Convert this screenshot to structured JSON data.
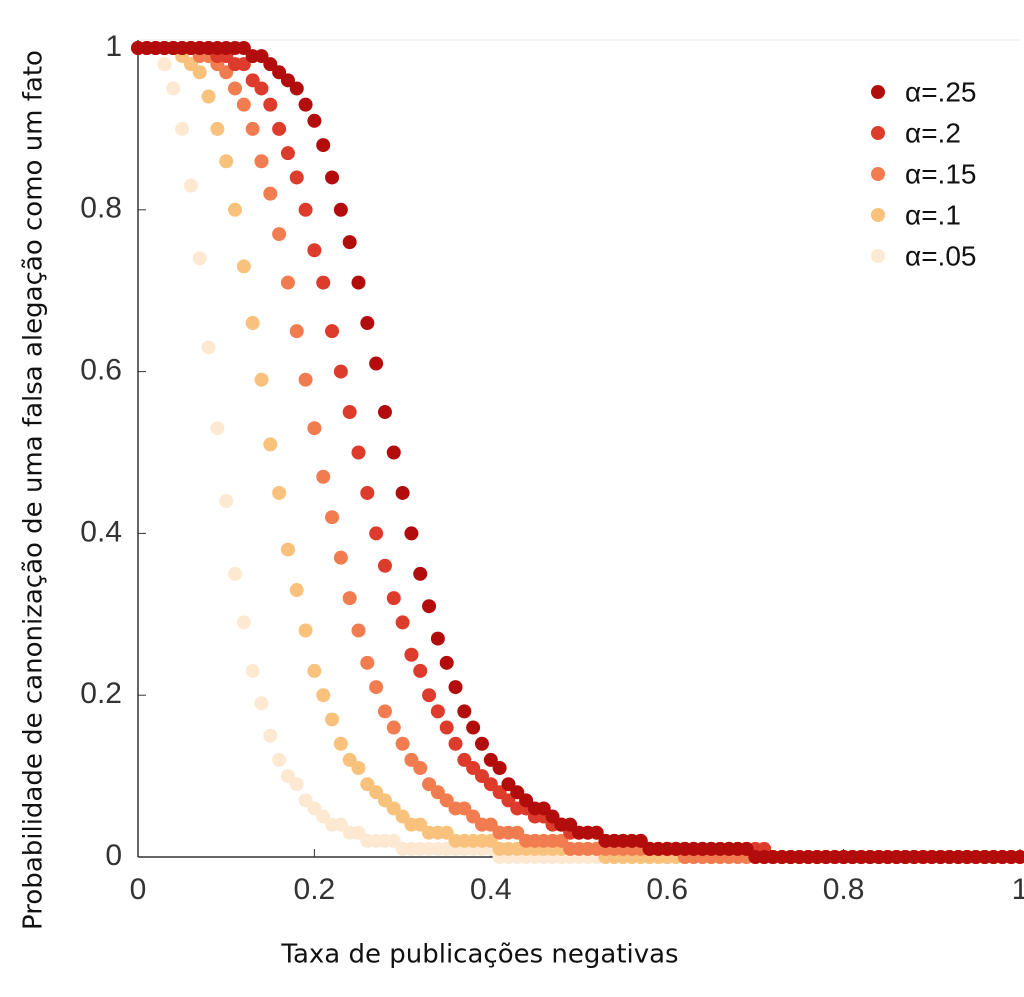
{
  "chart_data": {
    "type": "scatter",
    "xlabel": "Taxa de publicações negativas",
    "ylabel": "Probabilidade de canonização de uma falsa alegação como um fato",
    "xlim": [
      0,
      1
    ],
    "ylim": [
      0,
      1
    ],
    "xticks": [
      0,
      0.2,
      0.4,
      0.6,
      0.8,
      1
    ],
    "yticks": [
      0,
      0.2,
      0.4,
      0.6,
      0.8,
      1
    ],
    "legend": "upper right",
    "grid": false,
    "x": [
      0,
      0.01,
      0.02,
      0.03,
      0.04,
      0.05,
      0.06,
      0.07,
      0.08,
      0.09,
      0.1,
      0.11,
      0.12,
      0.13,
      0.14,
      0.15,
      0.16,
      0.17,
      0.18,
      0.19,
      0.2,
      0.21,
      0.22,
      0.23,
      0.24,
      0.25,
      0.26,
      0.27,
      0.28,
      0.29,
      0.3,
      0.31,
      0.32,
      0.33,
      0.34,
      0.35,
      0.36,
      0.37,
      0.38,
      0.39,
      0.4,
      0.41,
      0.42,
      0.43,
      0.44,
      0.45,
      0.46,
      0.47,
      0.48,
      0.49,
      0.5,
      0.51,
      0.52,
      0.53,
      0.54,
      0.55,
      0.56,
      0.57,
      0.58,
      0.59,
      0.6,
      0.61,
      0.62,
      0.63,
      0.64,
      0.65,
      0.66,
      0.67,
      0.68,
      0.69,
      0.7,
      0.71,
      0.72,
      0.73,
      0.74,
      0.75,
      0.76,
      0.77,
      0.78,
      0.79,
      0.8,
      0.81,
      0.82,
      0.83,
      0.84,
      0.85,
      0.86,
      0.87,
      0.88,
      0.89,
      0.9,
      0.91,
      0.92,
      0.93,
      0.94,
      0.95,
      0.96,
      0.97,
      0.98,
      0.99,
      1
    ],
    "series": [
      {
        "name": "α=.25",
        "color": "#b20c0c",
        "values": [
          1,
          1,
          1,
          1,
          1,
          1,
          1,
          1,
          1,
          1,
          1,
          1,
          1,
          0.99,
          0.99,
          0.98,
          0.97,
          0.96,
          0.95,
          0.93,
          0.91,
          0.88,
          0.84,
          0.8,
          0.76,
          0.71,
          0.66,
          0.61,
          0.55,
          0.5,
          0.45,
          0.4,
          0.35,
          0.31,
          0.27,
          0.24,
          0.21,
          0.18,
          0.16,
          0.14,
          0.12,
          0.11,
          0.09,
          0.08,
          0.07,
          0.06,
          0.06,
          0.05,
          0.04,
          0.04,
          0.03,
          0.03,
          0.03,
          0.02,
          0.02,
          0.02,
          0.02,
          0.02,
          0.01,
          0.01,
          0.01,
          0.01,
          0.01,
          0.01,
          0.01,
          0.01,
          0.01,
          0.01,
          0.01,
          0.01,
          0,
          0,
          0,
          0,
          0,
          0,
          0,
          0,
          0,
          0,
          0,
          0,
          0,
          0,
          0,
          0,
          0,
          0,
          0,
          0,
          0,
          0,
          0,
          0,
          0,
          0,
          0,
          0,
          0,
          0,
          0
        ]
      },
      {
        "name": "α=.2",
        "color": "#dd3b2b",
        "values": [
          1,
          1,
          1,
          1,
          1,
          1,
          1,
          1,
          1,
          0.99,
          0.99,
          0.98,
          0.98,
          0.96,
          0.95,
          0.93,
          0.9,
          0.87,
          0.84,
          0.8,
          0.75,
          0.71,
          0.65,
          0.6,
          0.55,
          0.5,
          0.45,
          0.4,
          0.36,
          0.32,
          0.29,
          0.25,
          0.23,
          0.2,
          0.18,
          0.16,
          0.14,
          0.12,
          0.11,
          0.1,
          0.09,
          0.08,
          0.07,
          0.06,
          0.06,
          0.05,
          0.05,
          0.04,
          0.04,
          0.03,
          0.03,
          0.03,
          0.03,
          0.02,
          0.02,
          0.02,
          0.02,
          0.02,
          0.01,
          0.01,
          0.01,
          0.01,
          0.01,
          0.01,
          0.01,
          0.01,
          0.01,
          0.01,
          0.01,
          0.01,
          0.01,
          0.01,
          0,
          0,
          0,
          0,
          0,
          0,
          0,
          0,
          0,
          0,
          0,
          0,
          0,
          0,
          0,
          0,
          0,
          0,
          0,
          0,
          0,
          0,
          0,
          0,
          0,
          0,
          0,
          0,
          0
        ]
      },
      {
        "name": "α=.15",
        "color": "#f17c50",
        "values": [
          1,
          1,
          1,
          1,
          1,
          1,
          1,
          0.99,
          0.99,
          0.98,
          0.97,
          0.95,
          0.93,
          0.9,
          0.86,
          0.82,
          0.77,
          0.71,
          0.65,
          0.59,
          0.53,
          0.47,
          0.42,
          0.37,
          0.32,
          0.28,
          0.24,
          0.21,
          0.18,
          0.16,
          0.14,
          0.12,
          0.11,
          0.09,
          0.08,
          0.07,
          0.06,
          0.06,
          0.05,
          0.04,
          0.04,
          0.03,
          0.03,
          0.03,
          0.02,
          0.02,
          0.02,
          0.02,
          0.02,
          0.01,
          0.01,
          0.01,
          0.01,
          0.01,
          0.01,
          0.01,
          0.01,
          0.01,
          0.01,
          0.01,
          0.01,
          0.01,
          0,
          0,
          0,
          0,
          0,
          0,
          0,
          0,
          0,
          0,
          0,
          0,
          0,
          0,
          0,
          0,
          0,
          0,
          0,
          0,
          0,
          0,
          0,
          0,
          0,
          0,
          0,
          0,
          0,
          0,
          0,
          0,
          0,
          0,
          0,
          0,
          0,
          0,
          0
        ]
      },
      {
        "name": "α=.1",
        "color": "#f8c27c",
        "values": [
          1,
          1,
          1,
          1,
          1,
          0.99,
          0.98,
          0.97,
          0.94,
          0.9,
          0.86,
          0.8,
          0.73,
          0.66,
          0.59,
          0.51,
          0.45,
          0.38,
          0.33,
          0.28,
          0.23,
          0.2,
          0.17,
          0.14,
          0.12,
          0.11,
          0.09,
          0.08,
          0.07,
          0.06,
          0.05,
          0.04,
          0.04,
          0.03,
          0.03,
          0.03,
          0.02,
          0.02,
          0.02,
          0.02,
          0.02,
          0.01,
          0.01,
          0.01,
          0.01,
          0.01,
          0.01,
          0.01,
          0.01,
          0.01,
          0.01,
          0.01,
          0.01,
          0,
          0,
          0,
          0,
          0,
          0,
          0,
          0,
          0,
          0,
          0,
          0,
          0,
          0,
          0,
          0,
          0,
          0,
          0,
          0,
          0,
          0,
          0,
          0,
          0,
          0,
          0,
          0,
          0,
          0,
          0,
          0,
          0,
          0,
          0,
          0,
          0,
          0,
          0,
          0,
          0,
          0,
          0,
          0,
          0,
          0,
          0,
          0
        ]
      },
      {
        "name": "α=.05",
        "color": "#fde9d1",
        "values": [
          1,
          1,
          1,
          0.98,
          0.95,
          0.9,
          0.83,
          0.74,
          0.63,
          0.53,
          0.44,
          0.35,
          0.29,
          0.23,
          0.19,
          0.15,
          0.12,
          0.1,
          0.09,
          0.07,
          0.06,
          0.05,
          0.04,
          0.04,
          0.03,
          0.03,
          0.02,
          0.02,
          0.02,
          0.02,
          0.01,
          0.01,
          0.01,
          0.01,
          0.01,
          0.01,
          0.01,
          0.01,
          0.01,
          0.01,
          0.01,
          0,
          0,
          0,
          0,
          0,
          0,
          0,
          0,
          0,
          0,
          0,
          0,
          0,
          0,
          0,
          0,
          0,
          0,
          0,
          0,
          0,
          0,
          0,
          0,
          0,
          0,
          0,
          0,
          0,
          0,
          0,
          0,
          0,
          0,
          0,
          0,
          0,
          0,
          0,
          0,
          0,
          0,
          0,
          0,
          0,
          0,
          0,
          0,
          0,
          0,
          0,
          0,
          0,
          0,
          0,
          0,
          0,
          0,
          0,
          0
        ]
      }
    ]
  }
}
